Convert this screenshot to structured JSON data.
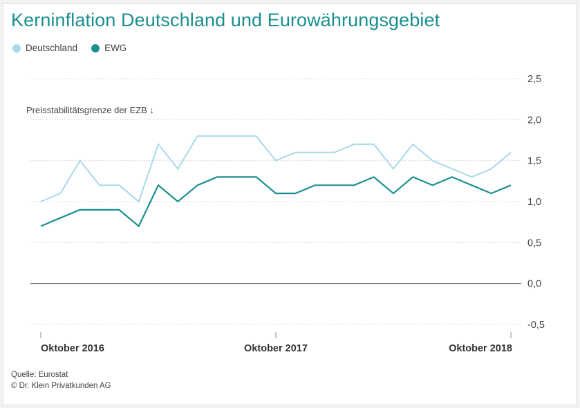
{
  "chart_data": {
    "type": "line",
    "title": "Kerninflation Deutschland und Eurowährungsgebiet",
    "xlabel": "",
    "ylabel": "",
    "annotation": "Preisstabilitätsgrenze der EZB ↓",
    "x_ticks": [
      "Oktober 2016",
      "Oktober 2017",
      "Oktober 2018"
    ],
    "x_tick_positions": [
      0,
      12,
      24
    ],
    "y_ticks": [
      "2,5",
      "2,0",
      "1,5",
      "1,0",
      "0,5",
      "0,0",
      "-0,5"
    ],
    "y_tick_values": [
      2.5,
      2.0,
      1.5,
      1.0,
      0.5,
      0.0,
      -0.5
    ],
    "ylim": [
      -0.5,
      2.5
    ],
    "grid": true,
    "legend_position": "top-left",
    "x": [
      "2016-10",
      "2016-11",
      "2016-12",
      "2017-01",
      "2017-02",
      "2017-03",
      "2017-04",
      "2017-05",
      "2017-06",
      "2017-07",
      "2017-08",
      "2017-09",
      "2017-10",
      "2017-11",
      "2017-12",
      "2018-01",
      "2018-02",
      "2018-03",
      "2018-04",
      "2018-05",
      "2018-06",
      "2018-07",
      "2018-08",
      "2018-09",
      "2018-10"
    ],
    "series": [
      {
        "name": "Deutschland",
        "color": "#a8d8ea",
        "values": [
          1.0,
          1.1,
          1.5,
          1.2,
          1.2,
          1.0,
          1.7,
          1.4,
          1.8,
          1.8,
          1.8,
          1.8,
          1.5,
          1.6,
          1.6,
          1.6,
          1.7,
          1.7,
          1.4,
          1.7,
          1.5,
          1.4,
          1.3,
          1.4,
          1.6
        ]
      },
      {
        "name": "EWG",
        "color": "#1a8f8f",
        "values": [
          0.7,
          0.8,
          0.9,
          0.9,
          0.9,
          0.7,
          1.2,
          1.0,
          1.2,
          1.3,
          1.3,
          1.3,
          1.1,
          1.1,
          1.2,
          1.2,
          1.2,
          1.3,
          1.1,
          1.3,
          1.2,
          1.3,
          1.2,
          1.1,
          1.2
        ]
      }
    ]
  },
  "footer": {
    "source": "Quelle: Eurostat",
    "copyright": "© Dr. Klein Privatkunden AG"
  }
}
